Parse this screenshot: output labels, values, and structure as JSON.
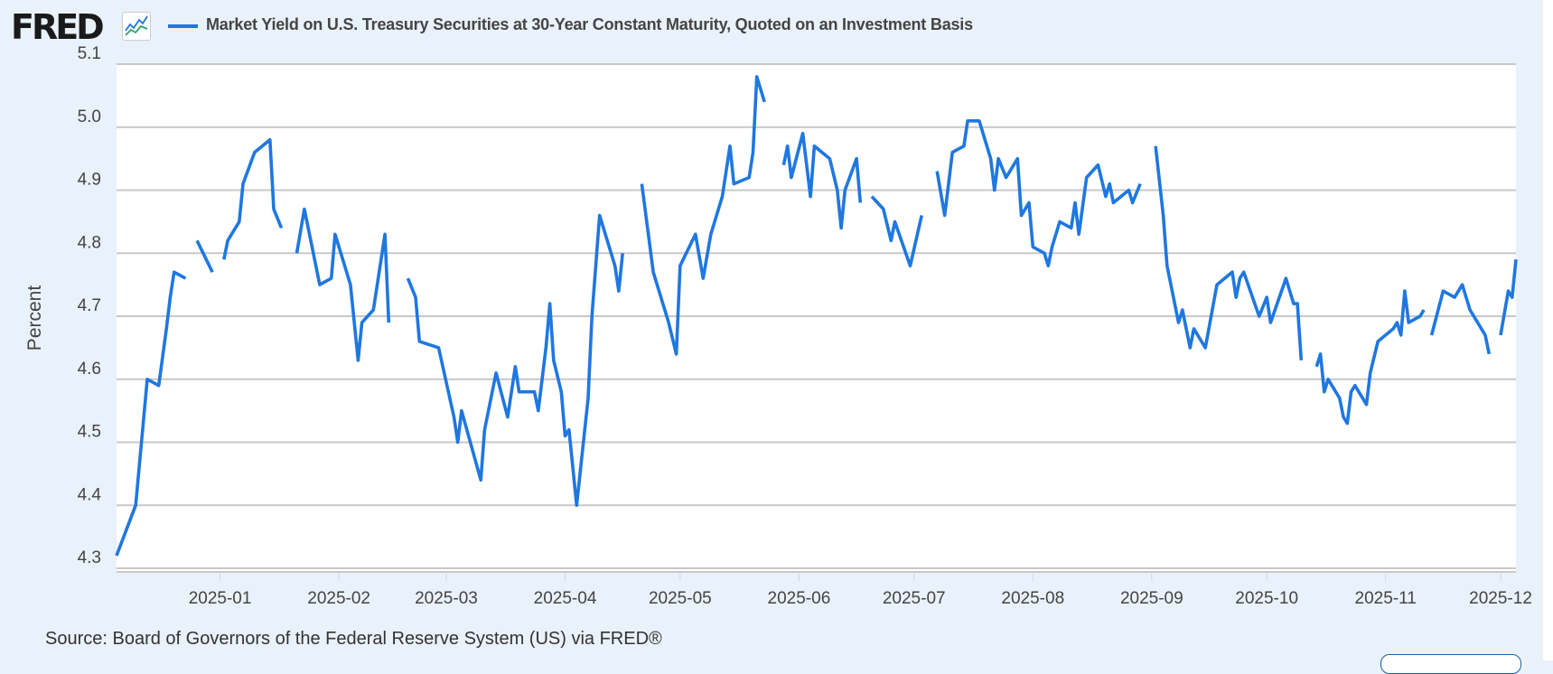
{
  "header": {
    "logo_text": "FRED",
    "logo_icon": "line-chart-icon",
    "title": "Market Yield on U.S. Treasury Securities at 30-Year Constant Maturity, Quoted on an Investment Basis"
  },
  "footer": {
    "source": "Source: Board of Governors of the Federal Reserve System (US) via FRED®"
  },
  "colors": {
    "line": "#1f77e0",
    "background": "#e9f1fa",
    "plot_bg": "#ffffff",
    "grid": "#c8c8c8"
  },
  "chart_data": {
    "type": "line",
    "title": "Market Yield on U.S. Treasury Securities at 30-Year Constant Maturity, Quoted on an Investment Basis",
    "xlabel": "",
    "ylabel": "Percent",
    "ylim": [
      4.3,
      5.1
    ],
    "xlim": [
      "2024-12-05",
      "2025-12-05"
    ],
    "yticks": [
      "4.3",
      "4.4",
      "4.5",
      "4.6",
      "4.7",
      "4.8",
      "4.9",
      "5.0",
      "5.1"
    ],
    "xticks": [
      "2025-01",
      "2025-02",
      "2025-03",
      "2025-04",
      "2025-05",
      "2025-06",
      "2025-07",
      "2025-08",
      "2025-09",
      "2025-10",
      "2025-11",
      "2025-12"
    ],
    "grid": true,
    "legend": "top-left",
    "series": [
      {
        "name": "Market Yield on U.S. Treasury Securities at 30-Year Constant Maturity, Quoted on an Investment Basis",
        "points": [
          [
            "2024-12-05",
            4.32
          ],
          [
            "2024-12-10",
            4.4
          ],
          [
            "2024-12-13",
            4.6
          ],
          [
            "2024-12-16",
            4.59
          ],
          [
            "2024-12-18",
            4.68
          ],
          [
            "2024-12-19",
            4.73
          ],
          [
            "2024-12-20",
            4.77
          ],
          [
            "2024-12-23",
            4.76
          ],
          [
            "2024-12-24",
            null
          ],
          [
            "2024-12-26",
            4.82
          ],
          [
            "2024-12-30",
            4.77
          ],
          [
            "2024-12-31",
            null
          ],
          [
            "2025-01-02",
            4.79
          ],
          [
            "2025-01-03",
            4.82
          ],
          [
            "2025-01-06",
            4.85
          ],
          [
            "2025-01-07",
            4.91
          ],
          [
            "2025-01-10",
            4.96
          ],
          [
            "2025-01-14",
            4.98
          ],
          [
            "2025-01-15",
            4.87
          ],
          [
            "2025-01-17",
            4.84
          ],
          [
            "2025-01-20",
            null
          ],
          [
            "2025-01-21",
            4.8
          ],
          [
            "2025-01-23",
            4.87
          ],
          [
            "2025-01-27",
            4.75
          ],
          [
            "2025-01-30",
            4.76
          ],
          [
            "2025-01-31",
            4.83
          ],
          [
            "2025-02-04",
            4.75
          ],
          [
            "2025-02-06",
            4.63
          ],
          [
            "2025-02-07",
            4.69
          ],
          [
            "2025-02-10",
            4.71
          ],
          [
            "2025-02-13",
            4.83
          ],
          [
            "2025-02-14",
            4.69
          ],
          [
            "2025-02-17",
            null
          ],
          [
            "2025-02-19",
            4.76
          ],
          [
            "2025-02-21",
            4.73
          ],
          [
            "2025-02-22",
            4.66
          ],
          [
            "2025-02-27",
            4.65
          ],
          [
            "2025-03-03",
            4.54
          ],
          [
            "2025-03-04",
            4.5
          ],
          [
            "2025-03-05",
            4.55
          ],
          [
            "2025-03-10",
            4.44
          ],
          [
            "2025-03-11",
            4.52
          ],
          [
            "2025-03-14",
            4.61
          ],
          [
            "2025-03-17",
            4.54
          ],
          [
            "2025-03-19",
            4.62
          ],
          [
            "2025-03-20",
            4.58
          ],
          [
            "2025-03-24",
            4.58
          ],
          [
            "2025-03-25",
            4.55
          ],
          [
            "2025-03-27",
            4.65
          ],
          [
            "2025-03-28",
            4.72
          ],
          [
            "2025-03-29",
            4.63
          ],
          [
            "2025-03-31",
            4.58
          ],
          [
            "2025-04-01",
            4.51
          ],
          [
            "2025-04-02",
            4.52
          ],
          [
            "2025-04-04",
            4.4
          ],
          [
            "2025-04-07",
            4.57
          ],
          [
            "2025-04-08",
            4.7
          ],
          [
            "2025-04-10",
            4.86
          ],
          [
            "2025-04-14",
            4.78
          ],
          [
            "2025-04-15",
            4.74
          ],
          [
            "2025-04-16",
            4.8
          ],
          [
            "2025-04-18",
            null
          ],
          [
            "2025-04-21",
            4.91
          ],
          [
            "2025-04-24",
            4.77
          ],
          [
            "2025-04-28",
            4.69
          ],
          [
            "2025-04-30",
            4.64
          ],
          [
            "2025-05-01",
            4.78
          ],
          [
            "2025-05-05",
            4.83
          ],
          [
            "2025-05-07",
            4.76
          ],
          [
            "2025-05-09",
            4.83
          ],
          [
            "2025-05-12",
            4.89
          ],
          [
            "2025-05-14",
            4.97
          ],
          [
            "2025-05-15",
            4.91
          ],
          [
            "2025-05-19",
            4.92
          ],
          [
            "2025-05-20",
            4.96
          ],
          [
            "2025-05-21",
            5.08
          ],
          [
            "2025-05-23",
            5.04
          ],
          [
            "2025-05-26",
            null
          ],
          [
            "2025-05-28",
            4.94
          ],
          [
            "2025-05-29",
            4.97
          ],
          [
            "2025-05-30",
            4.92
          ],
          [
            "2025-06-02",
            4.99
          ],
          [
            "2025-06-04",
            4.89
          ],
          [
            "2025-06-05",
            4.97
          ],
          [
            "2025-06-09",
            4.95
          ],
          [
            "2025-06-11",
            4.9
          ],
          [
            "2025-06-12",
            4.84
          ],
          [
            "2025-06-13",
            4.9
          ],
          [
            "2025-06-16",
            4.95
          ],
          [
            "2025-06-17",
            4.88
          ],
          [
            "2025-06-19",
            null
          ],
          [
            "2025-06-20",
            4.89
          ],
          [
            "2025-06-23",
            4.87
          ],
          [
            "2025-06-25",
            4.82
          ],
          [
            "2025-06-26",
            4.85
          ],
          [
            "2025-06-30",
            4.78
          ],
          [
            "2025-07-03",
            4.86
          ],
          [
            "2025-07-04",
            null
          ],
          [
            "2025-07-07",
            4.93
          ],
          [
            "2025-07-09",
            4.86
          ],
          [
            "2025-07-11",
            4.96
          ],
          [
            "2025-07-14",
            4.97
          ],
          [
            "2025-07-15",
            5.01
          ],
          [
            "2025-07-18",
            5.01
          ],
          [
            "2025-07-21",
            4.95
          ],
          [
            "2025-07-22",
            4.9
          ],
          [
            "2025-07-23",
            4.95
          ],
          [
            "2025-07-25",
            4.92
          ],
          [
            "2025-07-28",
            4.95
          ],
          [
            "2025-07-29",
            4.86
          ],
          [
            "2025-07-31",
            4.88
          ],
          [
            "2025-08-01",
            4.81
          ],
          [
            "2025-08-04",
            4.8
          ],
          [
            "2025-08-05",
            4.78
          ],
          [
            "2025-08-06",
            4.81
          ],
          [
            "2025-08-08",
            4.85
          ],
          [
            "2025-08-11",
            4.84
          ],
          [
            "2025-08-12",
            4.88
          ],
          [
            "2025-08-13",
            4.83
          ],
          [
            "2025-08-15",
            4.92
          ],
          [
            "2025-08-18",
            4.94
          ],
          [
            "2025-08-20",
            4.89
          ],
          [
            "2025-08-21",
            4.91
          ],
          [
            "2025-08-22",
            4.88
          ],
          [
            "2025-08-26",
            4.9
          ],
          [
            "2025-08-27",
            4.88
          ],
          [
            "2025-08-29",
            4.91
          ],
          [
            "2025-09-01",
            null
          ],
          [
            "2025-09-02",
            4.97
          ],
          [
            "2025-09-04",
            4.86
          ],
          [
            "2025-09-05",
            4.78
          ],
          [
            "2025-09-08",
            4.69
          ],
          [
            "2025-09-09",
            4.71
          ],
          [
            "2025-09-11",
            4.65
          ],
          [
            "2025-09-12",
            4.68
          ],
          [
            "2025-09-15",
            4.65
          ],
          [
            "2025-09-18",
            4.75
          ],
          [
            "2025-09-22",
            4.77
          ],
          [
            "2025-09-23",
            4.73
          ],
          [
            "2025-09-24",
            4.76
          ],
          [
            "2025-09-25",
            4.77
          ],
          [
            "2025-09-29",
            4.7
          ],
          [
            "2025-10-01",
            4.73
          ],
          [
            "2025-10-02",
            4.69
          ],
          [
            "2025-10-06",
            4.76
          ],
          [
            "2025-10-08",
            4.72
          ],
          [
            "2025-10-09",
            4.72
          ],
          [
            "2025-10-10",
            4.63
          ],
          [
            "2025-10-13",
            null
          ],
          [
            "2025-10-14",
            4.62
          ],
          [
            "2025-10-15",
            4.64
          ],
          [
            "2025-10-16",
            4.58
          ],
          [
            "2025-10-17",
            4.6
          ],
          [
            "2025-10-20",
            4.57
          ],
          [
            "2025-10-21",
            4.54
          ],
          [
            "2025-10-22",
            4.53
          ],
          [
            "2025-10-23",
            4.58
          ],
          [
            "2025-10-24",
            4.59
          ],
          [
            "2025-10-27",
            4.56
          ],
          [
            "2025-10-28",
            4.61
          ],
          [
            "2025-10-30",
            4.66
          ],
          [
            "2025-11-03",
            4.68
          ],
          [
            "2025-11-04",
            4.69
          ],
          [
            "2025-11-05",
            4.67
          ],
          [
            "2025-11-06",
            4.74
          ],
          [
            "2025-11-07",
            4.69
          ],
          [
            "2025-11-10",
            4.7
          ],
          [
            "2025-11-11",
            4.71
          ],
          [
            "2025-11-12",
            null
          ],
          [
            "2025-11-13",
            4.67
          ],
          [
            "2025-11-16",
            4.74
          ],
          [
            "2025-11-19",
            4.73
          ],
          [
            "2025-11-21",
            4.75
          ],
          [
            "2025-11-23",
            4.71
          ],
          [
            "2025-11-27",
            4.67
          ],
          [
            "2025-11-28",
            4.64
          ],
          [
            "2025-11-29",
            null
          ],
          [
            "2025-12-01",
            4.67
          ],
          [
            "2025-12-03",
            4.74
          ],
          [
            "2025-12-04",
            4.73
          ],
          [
            "2025-12-05",
            4.79
          ]
        ]
      }
    ]
  }
}
